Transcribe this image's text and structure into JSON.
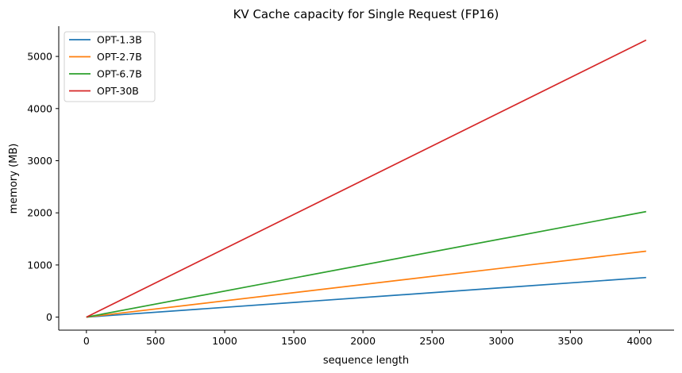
{
  "chart_data": {
    "type": "line",
    "title": "KV Cache capacity for Single Request (FP16)",
    "xlabel": "sequence length",
    "ylabel": "memory (MB)",
    "xlim": [
      -200,
      4250
    ],
    "ylim": [
      -250,
      5580
    ],
    "xticks": [
      0,
      500,
      1000,
      1500,
      2000,
      2500,
      3000,
      3500,
      4000
    ],
    "yticks": [
      0,
      1000,
      2000,
      3000,
      4000,
      5000
    ],
    "grid": false,
    "legend_position": "top-left",
    "x": [
      0,
      4048
    ],
    "series": [
      {
        "name": "OPT-1.3B",
        "color": "#1f77b4",
        "values": [
          0,
          759
        ]
      },
      {
        "name": "OPT-2.7B",
        "color": "#ff7f0e",
        "values": [
          0,
          1265
        ]
      },
      {
        "name": "OPT-6.7B",
        "color": "#2ca02c",
        "values": [
          0,
          2024
        ]
      },
      {
        "name": "OPT-30B",
        "color": "#d62728",
        "values": [
          0,
          5313
        ]
      }
    ]
  }
}
